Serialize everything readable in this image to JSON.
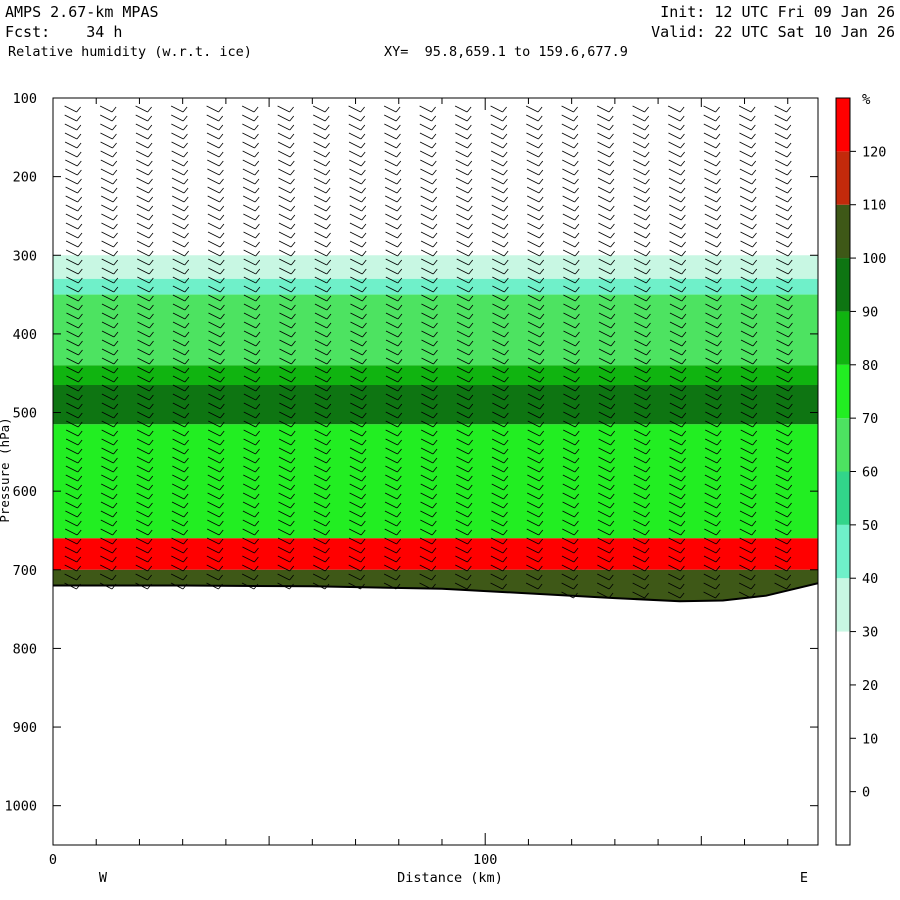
{
  "header": {
    "model": "AMPS 2.67-km MPAS",
    "init": "Init: 12 UTC Fri 09 Jan 26",
    "fcst": "Fcst:    34 h",
    "valid": "Valid: 22 UTC Sat 10 Jan 26",
    "field": "Relative humidity (w.r.t. ice)",
    "xy": "XY=  95.8,659.1 to 159.6,677.9"
  },
  "chart_data": {
    "type": "heatmap",
    "title": "Relative humidity (w.r.t. ice)",
    "xlabel": "Distance (km)",
    "ylabel": "Pressure (hPa)",
    "x_ticks": [
      0,
      100
    ],
    "x_range": [
      0,
      177
    ],
    "x_direction_labels": [
      "W",
      "E"
    ],
    "y_ticks": [
      100,
      200,
      300,
      400,
      500,
      600,
      700,
      800,
      900,
      1000
    ],
    "y_range": [
      100,
      1050
    ],
    "y_inverted": true,
    "colorbar": {
      "unit": "%",
      "levels": [
        0,
        10,
        20,
        30,
        40,
        50,
        60,
        70,
        80,
        90,
        100,
        110,
        120
      ],
      "colors": [
        "#ffffff",
        "#ffffff",
        "#ffffff",
        "#ffffff",
        "#c8f7e3",
        "#6ff0c9",
        "#32d58a",
        "#4de361",
        "#22ee22",
        "#10b410",
        "#0e7512",
        "#3e5817",
        "#c32a0b",
        "#ff0000"
      ]
    },
    "rh_layers": [
      {
        "p_top": 300,
        "p_bottom": 330,
        "rh": 35
      },
      {
        "p_top": 330,
        "p_bottom": 350,
        "rh": 45
      },
      {
        "p_top": 350,
        "p_bottom": 440,
        "rh": 62
      },
      {
        "p_top": 440,
        "p_bottom": 465,
        "rh": 80
      },
      {
        "p_top": 465,
        "p_bottom": 515,
        "rh": 95
      },
      {
        "p_top": 515,
        "p_bottom": 660,
        "rh": 72
      },
      {
        "p_top": 660,
        "p_bottom": 700,
        "rh": 120
      },
      {
        "p_top": 700,
        "p_bottom": 740,
        "rh": 105
      }
    ],
    "terrain": {
      "x": [
        0,
        30,
        60,
        90,
        110,
        130,
        145,
        155,
        165,
        177
      ],
      "surface_pressure": [
        720,
        720,
        721,
        724,
        730,
        736,
        740,
        739,
        733,
        717
      ]
    },
    "wind_barbs": true,
    "grid": false,
    "legend": "colorbar-right"
  }
}
